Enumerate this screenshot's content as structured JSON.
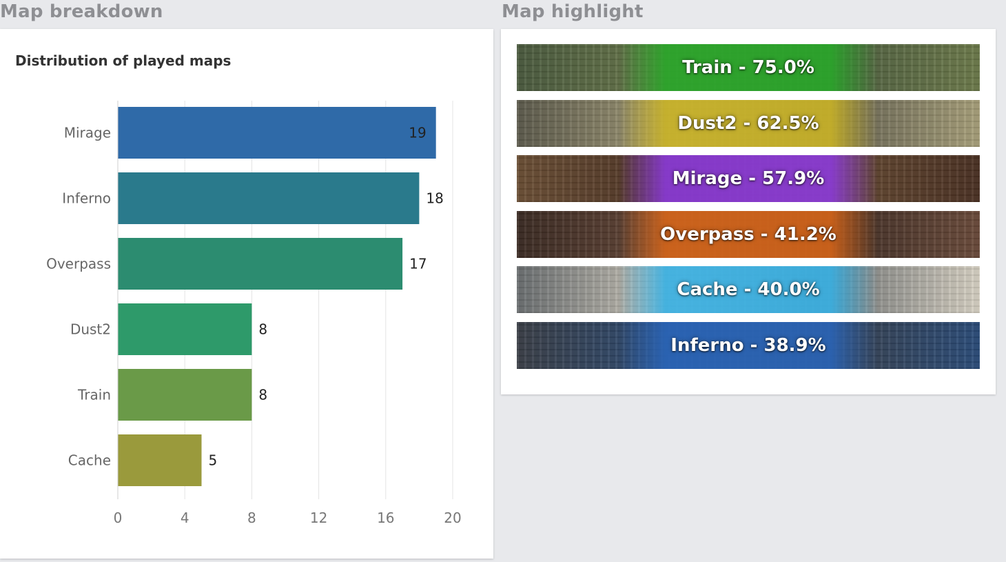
{
  "sections": {
    "left_title": "Map breakdown",
    "right_title": "Map highlight"
  },
  "chart_data": {
    "type": "bar",
    "orientation": "horizontal",
    "title": "Distribution of played maps",
    "categories": [
      "Mirage",
      "Inferno",
      "Overpass",
      "Dust2",
      "Train",
      "Cache"
    ],
    "values": [
      19,
      18,
      17,
      8,
      8,
      5
    ],
    "colors": [
      "#2f6aa8",
      "#2a7a8c",
      "#2c8c70",
      "#2e9a6a",
      "#6a9a48",
      "#9a9a3c"
    ],
    "xlim": [
      0,
      20
    ],
    "xticks": [
      0,
      4,
      8,
      12,
      16,
      20
    ],
    "grid": true,
    "legend": "none"
  },
  "highlights": [
    {
      "label": "Train - 75.0%",
      "band": "#2aa62a",
      "bg1": "#4a5a3e",
      "bg2": "#6c7a4a"
    },
    {
      "label": "Dust2 - 62.5%",
      "band": "#c8b228",
      "bg1": "#5c5a4c",
      "bg2": "#a8a07a"
    },
    {
      "label": "Mirage - 57.9%",
      "band": "#8a3ad6",
      "bg1": "#6a4e34",
      "bg2": "#4a3022"
    },
    {
      "label": "Overpass - 41.2%",
      "band": "#d2641a",
      "bg1": "#3a2a22",
      "bg2": "#6a4a3a"
    },
    {
      "label": "Cache - 40.0%",
      "band": "#3ab0e2",
      "bg1": "#6a6e70",
      "bg2": "#d8d2c4"
    },
    {
      "label": "Inferno - 38.9%",
      "band": "#2a64b6",
      "bg1": "#3a3e46",
      "bg2": "#2a4c7a"
    }
  ]
}
